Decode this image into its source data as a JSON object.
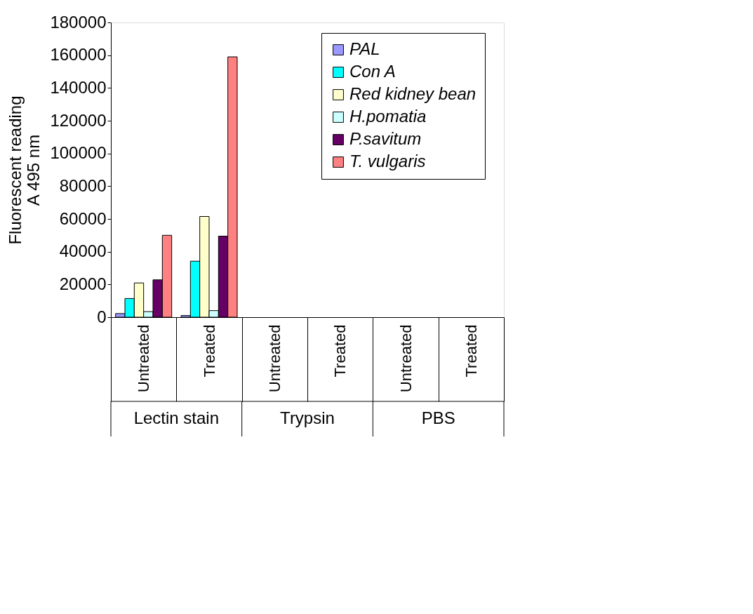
{
  "chart_data": {
    "type": "bar",
    "ylabel": "Fluorescent reading\nA 495 nm",
    "categories": [
      "Untreated",
      "Treated",
      "Untreated",
      "Treated",
      "Untreated",
      "Treated"
    ],
    "annotations": [
      "Lectin stain",
      "Trypsin",
      "PBS"
    ],
    "series": [
      {
        "name": "PAL",
        "color": "#9999ff",
        "values": [
          2200,
          1000,
          null,
          null,
          null,
          null
        ]
      },
      {
        "name": "Con A",
        "color": "#00ffff",
        "values": [
          11400,
          34200,
          null,
          null,
          null,
          null
        ]
      },
      {
        "name": "Red kidney bean",
        "color": "#ffffcc",
        "values": [
          20900,
          61500,
          null,
          null,
          null,
          null
        ]
      },
      {
        "name": "H.pomatia",
        "color": "#ccffff",
        "values": [
          3400,
          4000,
          null,
          null,
          null,
          null
        ]
      },
      {
        "name": "P.savitum",
        "color": "#660066",
        "values": [
          22800,
          49500,
          null,
          null,
          null,
          null
        ]
      },
      {
        "name": "T. vulgaris",
        "color": "#ff8080",
        "values": [
          50000,
          159000,
          null,
          null,
          null,
          null
        ]
      }
    ],
    "ylim": [
      0,
      180000
    ],
    "yticks": [
      0,
      20000,
      40000,
      60000,
      80000,
      100000,
      120000,
      140000,
      160000,
      180000
    ],
    "grid": false,
    "legend": "top right"
  }
}
